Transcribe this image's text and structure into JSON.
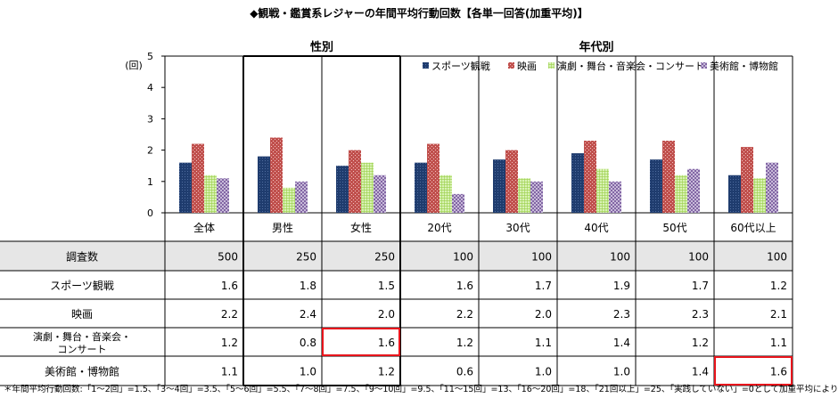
{
  "title": "◆観戦・鑑賞系レジャーの年間平均行動回数【各単一回答(加重平均)】",
  "group_labels": {
    "gender": "性別",
    "age": "年代別"
  },
  "unit_label": "(回)",
  "row_header_label": "調査数",
  "colors": {
    "sports": "#1f3c6e",
    "movie": "#c0504d",
    "theater": "#9bd04b",
    "museum": "#7a5c9e",
    "highlight": "#e8141b",
    "gray_row": "#e6e6e6"
  },
  "chart_data": {
    "type": "bar",
    "categories": [
      "全体",
      "男性",
      "女性",
      "20代",
      "30代",
      "40代",
      "50代",
      "60代以上"
    ],
    "sample_sizes": [
      "500",
      "250",
      "250",
      "100",
      "100",
      "100",
      "100",
      "100"
    ],
    "ylim": [
      0,
      5
    ],
    "yticks": [
      "0",
      "1",
      "2",
      "3",
      "4",
      "5"
    ],
    "legend": "top-right",
    "series": [
      {
        "name": "スポーツ観戦",
        "label": "スポーツ観戦",
        "values": [
          1.6,
          1.8,
          1.5,
          1.6,
          1.7,
          1.9,
          1.7,
          1.2
        ],
        "display": [
          "1.6",
          "1.8",
          "1.5",
          "1.6",
          "1.7",
          "1.9",
          "1.7",
          "1.2"
        ]
      },
      {
        "name": "映画",
        "label": "映画",
        "values": [
          2.2,
          2.4,
          2.0,
          2.2,
          2.0,
          2.3,
          2.3,
          2.1
        ],
        "display": [
          "2.2",
          "2.4",
          "2.0",
          "2.2",
          "2.0",
          "2.3",
          "2.3",
          "2.1"
        ]
      },
      {
        "name": "演劇・舞台・音楽会・コンサート",
        "label": "演劇・舞台・音楽会・\nコンサート",
        "values": [
          1.2,
          0.8,
          1.6,
          1.2,
          1.1,
          1.4,
          1.2,
          1.1
        ],
        "display": [
          "1.2",
          "0.8",
          "1.6",
          "1.2",
          "1.1",
          "1.4",
          "1.2",
          "1.1"
        ]
      },
      {
        "name": "美術館・博物館",
        "label": "美術館・博物館",
        "values": [
          1.1,
          1.0,
          1.2,
          0.6,
          1.0,
          1.0,
          1.4,
          1.6
        ],
        "display": [
          "1.1",
          "1.0",
          "1.2",
          "0.6",
          "1.0",
          "1.0",
          "1.4",
          "1.6"
        ]
      }
    ],
    "highlighted_cells": [
      {
        "series": 2,
        "category": 2
      },
      {
        "series": 3,
        "category": 7
      }
    ]
  },
  "footnote": "＊年間平均行動回数:「1〜2回」=1.5、「3〜4回」=3.5、「5〜6回」=5.5、「7〜8回」=7.5、「9〜10回」=9.5、「11〜15回」=13、「16〜20回」=18、「21回以上」=25、「実践していない」=0として加重平均により算出"
}
